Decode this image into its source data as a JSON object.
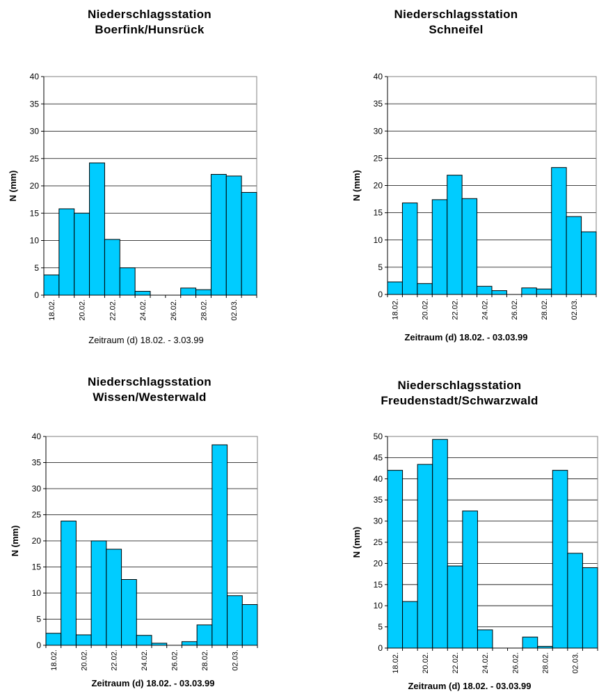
{
  "chart_data": [
    {
      "type": "bar",
      "title_line1": "Niederschlagsstation",
      "title_line2": "Boerfink/Hunsrück",
      "xlabel": "Zeitraum (d) 18.02. - 3.03.99",
      "ylabel": "N (mm)",
      "ylim": [
        0,
        40
      ],
      "yticks": [
        "0",
        "5",
        "10",
        "15",
        "20",
        "25",
        "30",
        "35",
        "40"
      ],
      "grid": true,
      "categories": [
        "18.02.",
        "19.02.",
        "20.02.",
        "21.02.",
        "22.02.",
        "23.02.",
        "24.02.",
        "25.02.",
        "26.02.",
        "27.02.",
        "28.02.",
        "01.03.",
        "02.03.",
        "03.03."
      ],
      "xtick_labels": [
        "18.02.",
        "20.02.",
        "22.02.",
        "24.02.",
        "26.02.",
        "28.02.",
        "02.03."
      ],
      "values": [
        3.7,
        15.8,
        15.0,
        24.2,
        10.2,
        5.0,
        0.7,
        0,
        0,
        1.3,
        1.0,
        22.1,
        21.8,
        18.8
      ]
    },
    {
      "type": "bar",
      "title_line1": "Niederschlagsstation",
      "title_line2": "Schneifel",
      "xlabel": "Zeitraum (d) 18.02. - 03.03.99",
      "ylabel": "N (mm)",
      "ylim": [
        0,
        40
      ],
      "yticks": [
        "0",
        "5",
        "10",
        "15",
        "20",
        "25",
        "30",
        "35",
        "40"
      ],
      "grid": true,
      "categories": [
        "18.02.",
        "19.02.",
        "20.02.",
        "21.02.",
        "22.02.",
        "23.02.",
        "24.02.",
        "25.02.",
        "26.02.",
        "27.02.",
        "28.02.",
        "01.03.",
        "02.03.",
        "03.03."
      ],
      "xtick_labels": [
        "18.02.",
        "20.02.",
        "22.02.",
        "24.02.",
        "26.02.",
        "28.02.",
        "02.03."
      ],
      "values": [
        2.3,
        16.8,
        2.0,
        17.4,
        21.9,
        17.6,
        1.5,
        0.7,
        0,
        1.2,
        1.0,
        23.3,
        14.3,
        11.5
      ]
    },
    {
      "type": "bar",
      "title_line1": "Niederschlagsstation",
      "title_line2": "Wissen/Westerwald",
      "xlabel": "Zeitraum (d) 18.02. - 03.03.99",
      "ylabel": "N (mm)",
      "ylim": [
        0,
        40
      ],
      "yticks": [
        "0",
        "5",
        "10",
        "15",
        "20",
        "25",
        "30",
        "35",
        "40"
      ],
      "grid": true,
      "categories": [
        "18.02.",
        "19.02.",
        "20.02.",
        "21.02.",
        "22.02.",
        "23.02.",
        "24.02.",
        "25.02.",
        "26.02.",
        "27.02.",
        "28.02.",
        "01.03.",
        "02.03.",
        "03.03."
      ],
      "xtick_labels": [
        "18.02.",
        "20.02.",
        "22.02.",
        "24.02.",
        "26.02.",
        "28.02.",
        "02.03."
      ],
      "values": [
        2.3,
        23.8,
        2.0,
        20.0,
        18.4,
        12.6,
        1.9,
        0.4,
        0,
        0.7,
        3.9,
        38.4,
        9.5,
        7.8
      ]
    },
    {
      "type": "bar",
      "title_line1": "Niederschlagsstation",
      "title_line2": "Freudenstadt/Schwarzwald",
      "xlabel": "Zeitraum (d) 18.02. - 03.03.99",
      "ylabel": "N (mm)",
      "ylim": [
        0,
        50
      ],
      "yticks": [
        "0",
        "5",
        "10",
        "15",
        "20",
        "25",
        "30",
        "35",
        "40",
        "45",
        "50"
      ],
      "grid": true,
      "categories": [
        "18.02.",
        "19.02.",
        "20.02.",
        "21.02.",
        "22.02.",
        "23.02.",
        "24.02.",
        "25.02.",
        "26.02.",
        "27.02.",
        "28.02.",
        "01.03.",
        "02.03.",
        "03.03."
      ],
      "xtick_labels": [
        "18.02.",
        "20.02.",
        "22.02.",
        "24.02.",
        "26.02.",
        "28.02.",
        "02.03."
      ],
      "values": [
        42.0,
        11.0,
        43.4,
        49.3,
        19.4,
        32.4,
        4.3,
        0,
        0,
        2.6,
        0.4,
        42.0,
        22.4,
        19.0
      ]
    }
  ]
}
